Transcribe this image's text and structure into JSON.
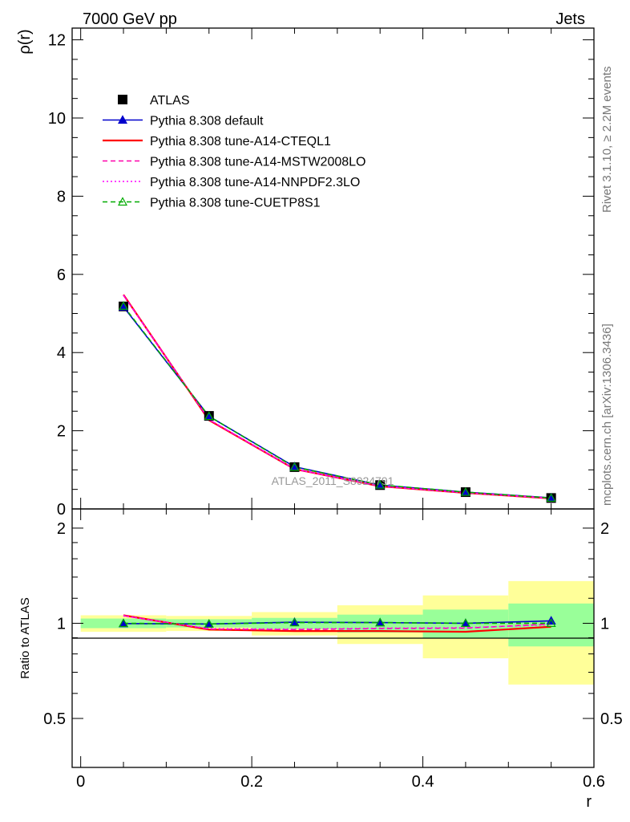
{
  "header": {
    "left": "7000 GeV pp",
    "right": "Jets"
  },
  "side_labels": {
    "rivet": "Rivet 3.1.10, ≥ 2.2M events",
    "mcplots": "mcplots.cern.ch [arXiv:1306.3436]"
  },
  "watermark": "ATLAS_2011_S8924791",
  "chart_data": [
    {
      "type": "line",
      "panel": "main",
      "xlabel": "",
      "ylabel": "ρ(r)",
      "xlim": [
        -0.01,
        0.6
      ],
      "ylim": [
        0,
        12.3
      ],
      "yticks": [
        0,
        2,
        4,
        6,
        8,
        10,
        12
      ],
      "x": [
        0.05,
        0.15,
        0.25,
        0.35,
        0.45,
        0.55
      ],
      "legend_position": "top-left",
      "series": [
        {
          "name": "ATLAS",
          "color": "#000000",
          "marker": "square",
          "style": "data",
          "values": [
            5.18,
            2.38,
            1.07,
            0.61,
            0.43,
            0.28
          ]
        },
        {
          "name": "Pythia 8.308 default",
          "color": "#0000cc",
          "marker": "triangle",
          "style": "solid",
          "values": [
            5.17,
            2.37,
            1.08,
            0.61,
            0.43,
            0.285
          ]
        },
        {
          "name": "Pythia 8.308 tune-A14-CTEQL1",
          "color": "#ff0000",
          "marker": "none",
          "style": "solid",
          "values": [
            5.48,
            2.27,
            1.02,
            0.58,
            0.41,
            0.27
          ]
        },
        {
          "name": "Pythia 8.308 tune-A14-MSTW2008LO",
          "color": "#ff00aa",
          "marker": "none",
          "style": "dashed",
          "values": [
            5.47,
            2.28,
            1.02,
            0.585,
            0.415,
            0.275
          ]
        },
        {
          "name": "Pythia 8.308 tune-A14-NNPDF2.3LO",
          "color": "#ff00ff",
          "marker": "none",
          "style": "dotted",
          "values": [
            5.46,
            2.29,
            1.02,
            0.585,
            0.413,
            0.273
          ]
        },
        {
          "name": "Pythia 8.308 tune-CUETP8S1",
          "color": "#00aa00",
          "marker": "triangle-open",
          "style": "dashed",
          "values": [
            5.19,
            2.37,
            1.07,
            0.615,
            0.43,
            0.28
          ]
        }
      ]
    },
    {
      "type": "line",
      "panel": "ratio",
      "xlabel": "r",
      "ylabel": "Ratio to ATLAS",
      "xlim": [
        -0.01,
        0.6
      ],
      "ylim": [
        0.35,
        2.3
      ],
      "xticks": [
        0,
        0.2,
        0.4,
        0.6
      ],
      "yticks": [
        0.5,
        1,
        2
      ],
      "x": [
        0.05,
        0.15,
        0.25,
        0.35,
        0.45,
        0.55
      ],
      "bins": [
        [
          0.0,
          0.1
        ],
        [
          0.1,
          0.2
        ],
        [
          0.2,
          0.3
        ],
        [
          0.3,
          0.4
        ],
        [
          0.4,
          0.5
        ],
        [
          0.5,
          0.6
        ]
      ],
      "band_stat": {
        "color": "#99ff99",
        "lo": [
          0.965,
          0.97,
          0.96,
          0.935,
          0.895,
          0.845
        ],
        "hi": [
          1.035,
          1.03,
          1.04,
          1.065,
          1.105,
          1.155
        ]
      },
      "band_total": {
        "color": "#ffff99",
        "lo": [
          0.94,
          0.945,
          0.915,
          0.86,
          0.775,
          0.64
        ],
        "hi": [
          1.06,
          1.055,
          1.085,
          1.14,
          1.225,
          1.36
        ]
      },
      "series": [
        {
          "name": "Pythia 8.308 default",
          "color": "#0000cc",
          "marker": "triangle",
          "style": "solid",
          "values": [
            0.998,
            0.995,
            1.008,
            1.005,
            1.0,
            1.018
          ]
        },
        {
          "name": "Pythia 8.308 tune-A14-CTEQL1",
          "color": "#ff0000",
          "marker": "none",
          "style": "solid",
          "values": [
            1.06,
            0.955,
            0.945,
            0.945,
            0.94,
            0.975
          ]
        },
        {
          "name": "Pythia 8.308 tune-A14-MSTW2008LO",
          "color": "#ff00aa",
          "marker": "none",
          "style": "dashed",
          "values": [
            1.058,
            0.958,
            0.955,
            0.962,
            0.965,
            0.995
          ]
        },
        {
          "name": "Pythia 8.308 tune-A14-NNPDF2.3LO",
          "color": "#ff00ff",
          "marker": "none",
          "style": "dotted",
          "values": [
            1.055,
            0.962,
            0.958,
            0.965,
            0.968,
            0.99
          ]
        },
        {
          "name": "Pythia 8.308 tune-CUETP8S1",
          "color": "#00aa00",
          "marker": "triangle-open",
          "style": "dashed",
          "values": [
            1.0,
            0.995,
            1.005,
            1.005,
            1.0,
            1.0
          ]
        }
      ]
    }
  ]
}
